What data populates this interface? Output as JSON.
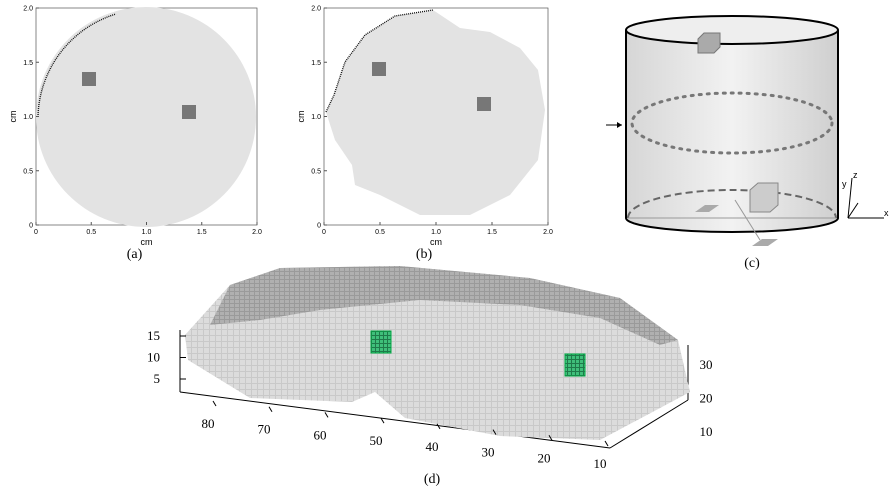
{
  "panels": [
    {
      "label": "(a)",
      "x_axis_label": "cm",
      "y_axis_label": "cm",
      "xticks": [
        "0",
        "0.5",
        "1.0",
        "1.5",
        "2.0"
      ],
      "yticks": [
        "0",
        "0.5",
        "1.0",
        "1.5",
        "2.0"
      ]
    },
    {
      "label": "(b)",
      "x_axis_label": "cm",
      "y_axis_label": "cm",
      "xticks": [
        "0",
        "0.5",
        "1.0",
        "1.5",
        "2.0"
      ],
      "yticks": [
        "0",
        "0.5",
        "1.0",
        "1.5",
        "2.0"
      ]
    },
    {
      "label": "(c)",
      "axes": [
        "z",
        "y",
        "x"
      ]
    },
    {
      "label": "(d)",
      "zticks": [
        "15",
        "10",
        "5"
      ],
      "xticks": [
        "80",
        "70",
        "60",
        "50",
        "40",
        "30",
        "20",
        "10"
      ],
      "yticks": [
        "10",
        "20",
        "30"
      ]
    }
  ]
}
